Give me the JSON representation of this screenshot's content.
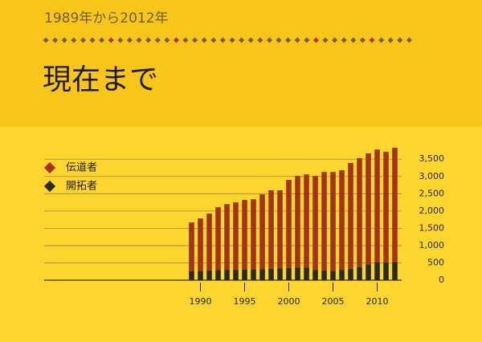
{
  "subtitle": "1989年から2012年",
  "title": "現在まで",
  "chart_data": {
    "type": "stacked-bar",
    "categories": [
      null,
      "1990",
      null,
      null,
      null,
      null,
      "1995",
      null,
      null,
      null,
      null,
      "2000",
      null,
      null,
      null,
      null,
      "2005",
      null,
      null,
      null,
      null,
      "2010",
      null,
      null
    ],
    "series": [
      {
        "name": "伝道者",
        "color": "#a4331d",
        "values": [
          1410,
          1515,
          1645,
          1820,
          1900,
          1950,
          2010,
          2030,
          2160,
          2270,
          2260,
          2550,
          2655,
          2700,
          2715,
          2850,
          2860,
          2880,
          3060,
          3150,
          3210,
          3260,
          3200,
          3310
        ]
      },
      {
        "name": "開拓者",
        "color": "#2b2a22",
        "values": [
          260,
          270,
          280,
          290,
          300,
          300,
          310,
          310,
          320,
          330,
          340,
          350,
          360,
          360,
          300,
          280,
          270,
          300,
          330,
          380,
          460,
          520,
          510,
          520
        ]
      }
    ],
    "ylim": [
      0,
      3900
    ],
    "yticks": [
      0,
      500,
      {
        "value": 1000,
        "label": "1,000"
      },
      {
        "value": 1500,
        "label": "1,500"
      },
      {
        "value": 2000,
        "label": "2,000"
      },
      {
        "value": 2500,
        "label": "2,500"
      },
      {
        "value": 3000,
        "label": "3,000"
      },
      {
        "value": 3500,
        "label": "3,500"
      }
    ],
    "grid": true,
    "legend": "top-left"
  }
}
